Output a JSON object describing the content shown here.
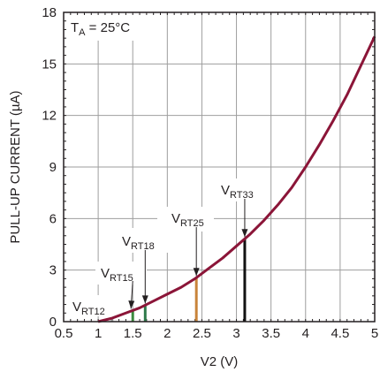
{
  "chart_data": {
    "type": "line",
    "title": "",
    "xlabel": "V2 (V)",
    "ylabel": "PULL-UP CURRENT (µA)",
    "xlim": [
      0.5,
      5
    ],
    "ylim": [
      0,
      18
    ],
    "x_ticks": [
      "0.5",
      "1",
      "1.5",
      "2",
      "2.5",
      "3",
      "3.5",
      "4",
      "4.5",
      "5"
    ],
    "y_ticks": [
      "0",
      "3",
      "6",
      "9",
      "12",
      "15",
      "18"
    ],
    "grid": true,
    "series": [
      {
        "color": "#8b1538",
        "x": [
          1.0,
          1.2,
          1.4,
          1.6,
          1.8,
          2.0,
          2.2,
          2.4,
          2.6,
          2.8,
          3.0,
          3.2,
          3.4,
          3.6,
          3.8,
          4.0,
          4.2,
          4.4,
          4.6,
          4.8,
          5.0
        ],
        "y": [
          0.0,
          0.2,
          0.5,
          0.8,
          1.2,
          1.6,
          2.0,
          2.5,
          3.1,
          3.7,
          4.4,
          5.1,
          5.9,
          6.8,
          7.8,
          9.0,
          10.3,
          11.7,
          13.2,
          14.9,
          16.6
        ]
      }
    ],
    "annotation_text": {
      "temp": {
        "main": "T",
        "sub": "A",
        "rest": " = 25°C"
      },
      "vrt12": {
        "main": "V",
        "sub": "RT12"
      },
      "vrt15": {
        "main": "V",
        "sub": "RT15"
      },
      "vrt18": {
        "main": "V",
        "sub": "RT18"
      },
      "vrt25": {
        "main": "V",
        "sub": "RT25"
      },
      "vrt33": {
        "main": "V",
        "sub": "RT33"
      }
    },
    "markers": [
      {
        "id": "vrt12",
        "x": 1.2,
        "color": "#9a9a9a"
      },
      {
        "id": "vrt15",
        "x": 1.5,
        "color": "#3b8a3e"
      },
      {
        "id": "vrt18",
        "x": 1.68,
        "color": "#2e7a4a"
      },
      {
        "id": "vrt25",
        "x": 2.42,
        "color": "#c8843a"
      },
      {
        "id": "vrt33",
        "x": 3.12,
        "color": "#111111"
      }
    ]
  }
}
